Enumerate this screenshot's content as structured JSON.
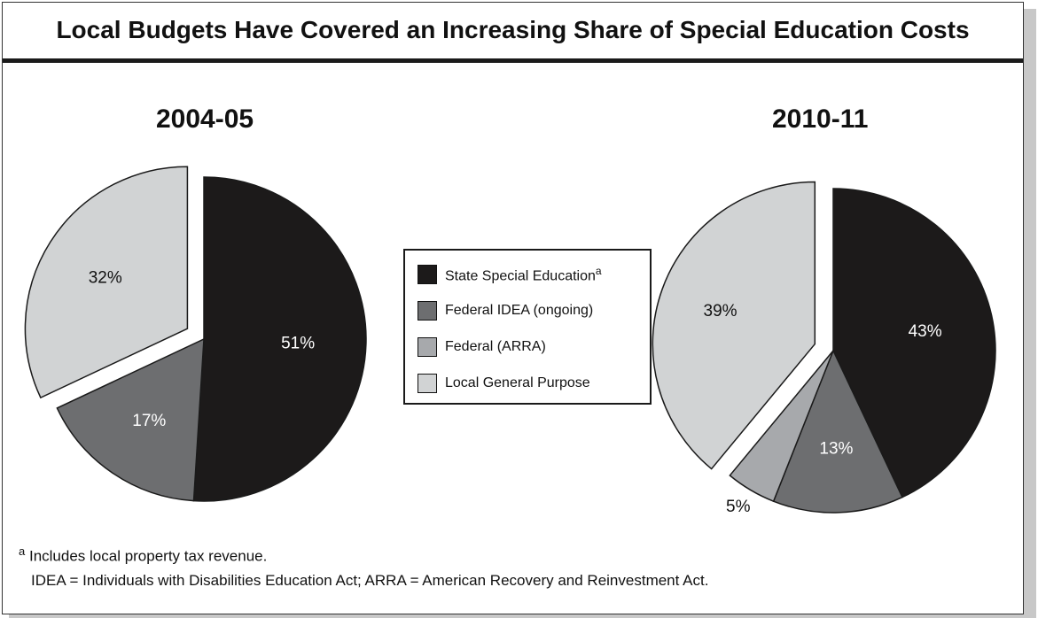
{
  "title": "Local Budgets Have Covered an Increasing Share of Special Education Costs",
  "colors": {
    "state_special_education": "#1c1a1a",
    "federal_idea": "#6d6e70",
    "federal_arra": "#a7a9ac",
    "local_general_purpose": "#d1d3d4"
  },
  "legend": {
    "items": [
      {
        "label": "State Special Education",
        "marker": "a",
        "color": "#1c1a1a"
      },
      {
        "label": "Federal IDEA (ongoing)",
        "marker": "",
        "color": "#6d6e70"
      },
      {
        "label": "Federal (ARRA)",
        "marker": "",
        "color": "#a7a9ac"
      },
      {
        "label": "Local General Purpose",
        "marker": "",
        "color": "#d1d3d4"
      }
    ]
  },
  "chart_data": [
    {
      "type": "pie",
      "title": "2004-05",
      "slices": [
        {
          "name": "State Special Education",
          "value": 51,
          "label": "51%",
          "color": "#1c1a1a"
        },
        {
          "name": "Federal IDEA (ongoing)",
          "value": 17,
          "label": "17%",
          "color": "#6d6e70"
        },
        {
          "name": "Local General Purpose",
          "value": 32,
          "label": "32%",
          "color": "#d1d3d4",
          "exploded": true
        }
      ]
    },
    {
      "type": "pie",
      "title": "2010-11",
      "slices": [
        {
          "name": "State Special Education",
          "value": 43,
          "label": "43%",
          "color": "#1c1a1a"
        },
        {
          "name": "Federal IDEA (ongoing)",
          "value": 13,
          "label": "13%",
          "color": "#6d6e70"
        },
        {
          "name": "Federal (ARRA)",
          "value": 5,
          "label": "5%",
          "color": "#a7a9ac"
        },
        {
          "name": "Local General Purpose",
          "value": 39,
          "label": "39%",
          "color": "#d1d3d4",
          "exploded": true
        }
      ]
    }
  ],
  "footnotes": {
    "marker": "a",
    "note_a": "Includes local property tax revenue.",
    "abbreviations": "IDEA = Individuals with Disabilities Education Act; ARRA = American Recovery and Reinvestment Act."
  }
}
